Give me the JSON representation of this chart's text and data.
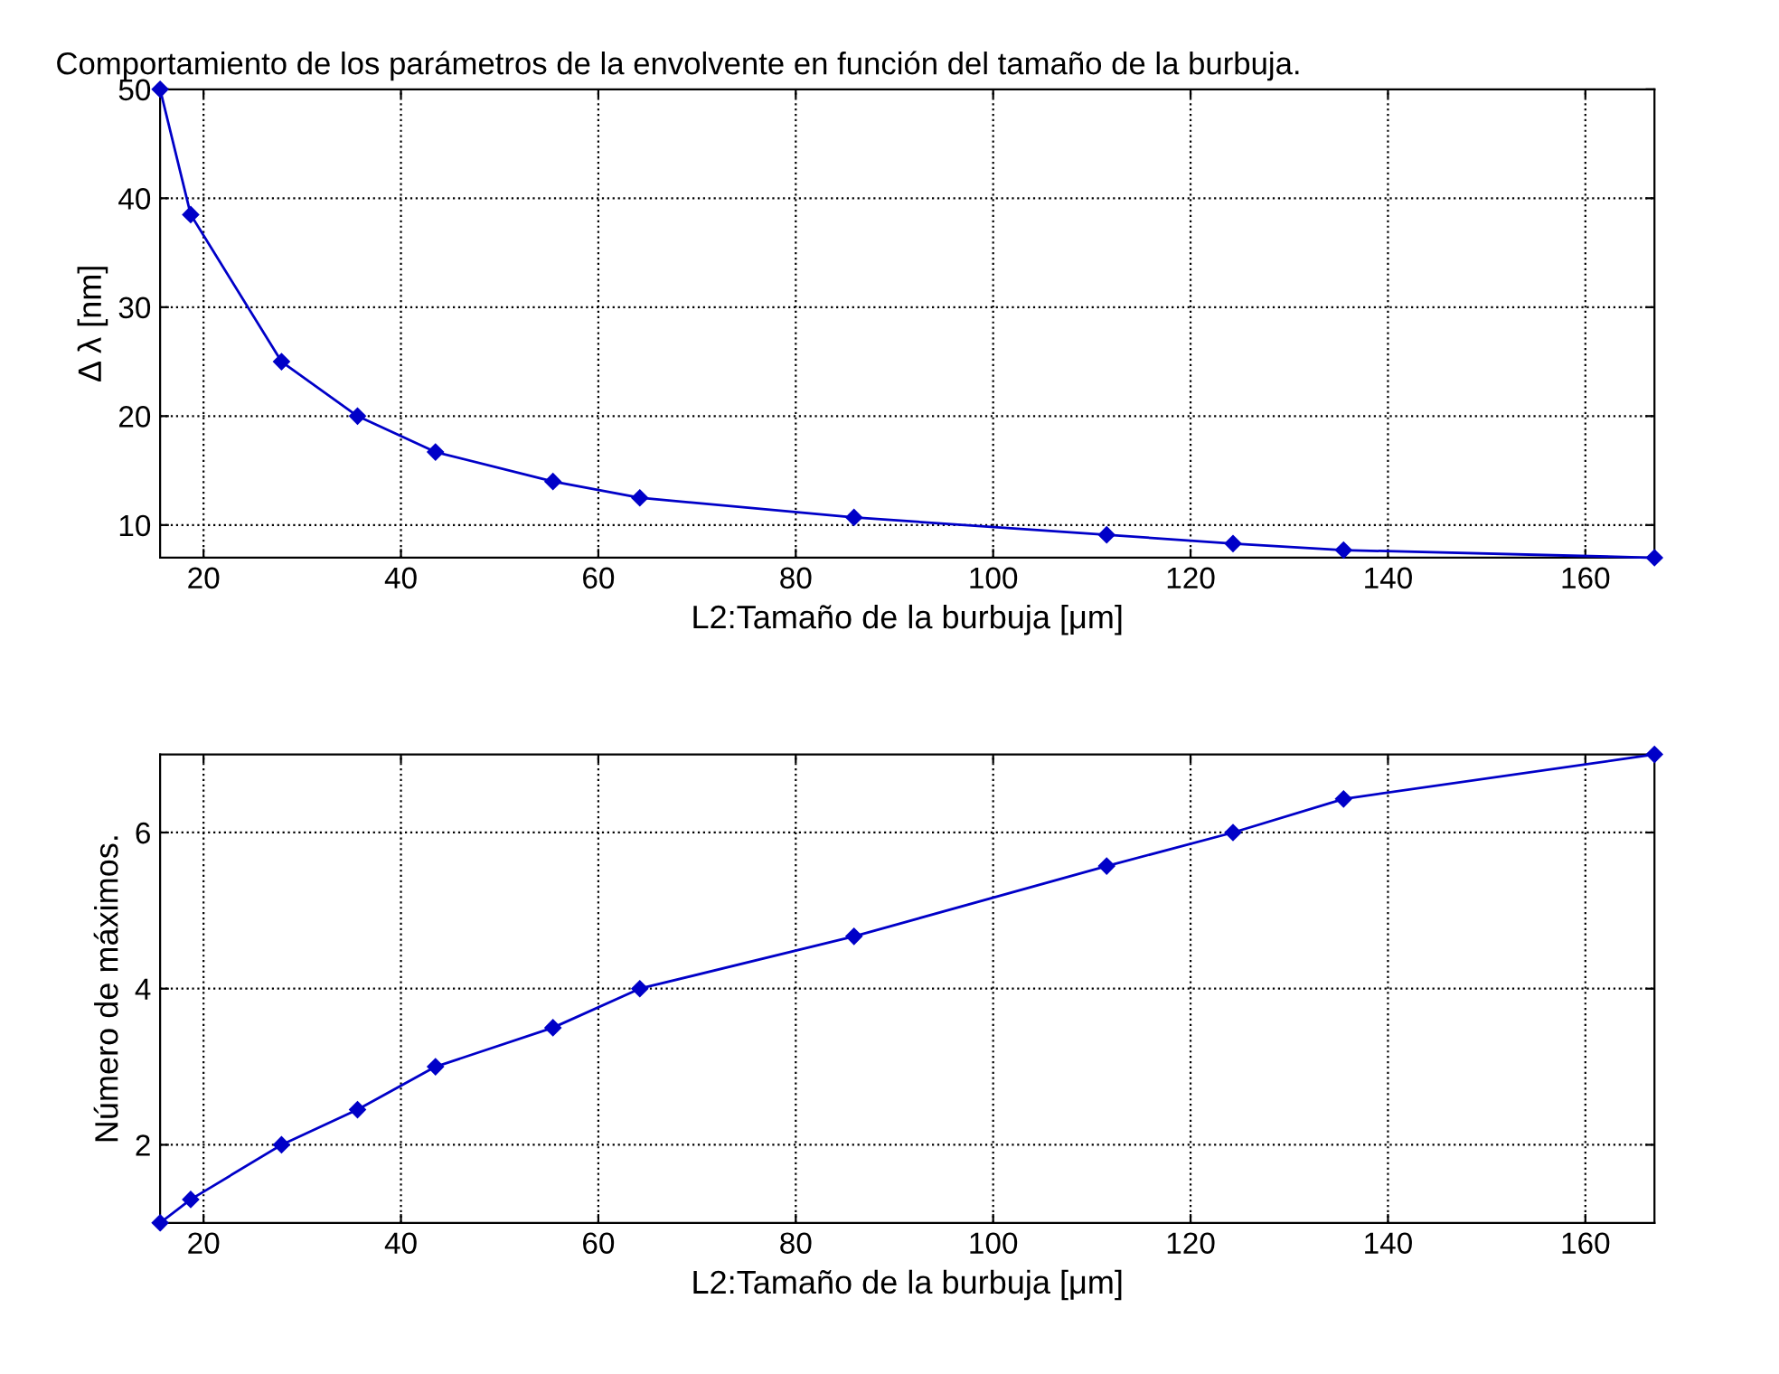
{
  "chart_data": [
    {
      "type": "line",
      "title": "Comportamiento de los parámetros de la envolvente en función del tamaño de la burbuja.",
      "xlabel": "L2:Tamaño de la burbuja [μm]",
      "ylabel": "Δ λ [nm]",
      "x": [
        15.6,
        18.7,
        27.9,
        35.6,
        43.5,
        55.4,
        64.2,
        85.9,
        111.5,
        124.3,
        135.5,
        167
      ],
      "series": [
        {
          "color": "#0000c8",
          "values": [
            50,
            38.5,
            25,
            20,
            16.7,
            14,
            12.5,
            10.7,
            9.1,
            8.3,
            7.7,
            7
          ]
        }
      ],
      "xlim": [
        15.6,
        167
      ],
      "ylim": [
        7,
        50
      ],
      "xticks": [
        20,
        40,
        60,
        80,
        100,
        120,
        140,
        160
      ],
      "yticks": [
        10,
        20,
        30,
        40,
        50
      ],
      "grid": true,
      "marker": "diamond",
      "line_style": "solid"
    },
    {
      "type": "line",
      "xlabel": "L2:Tamaño de la burbuja [μm]",
      "ylabel": "Número de máximos.",
      "x": [
        15.6,
        18.7,
        27.9,
        35.6,
        43.5,
        55.4,
        64.2,
        85.9,
        111.5,
        124.3,
        135.5,
        167
      ],
      "series": [
        {
          "color": "#0000c8",
          "values": [
            1,
            1.3,
            2,
            2.45,
            3,
            3.5,
            4,
            4.67,
            5.57,
            6,
            6.43,
            7
          ]
        }
      ],
      "xlim": [
        15.6,
        167
      ],
      "ylim": [
        1,
        7
      ],
      "xticks": [
        20,
        40,
        60,
        80,
        100,
        120,
        140,
        160
      ],
      "yticks": [
        2,
        4,
        6
      ],
      "grid": true,
      "marker": "diamond",
      "line_style": "solid"
    }
  ]
}
